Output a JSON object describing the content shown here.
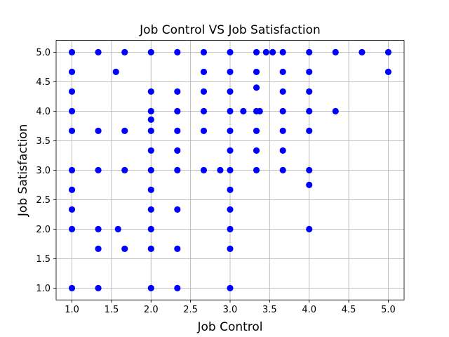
{
  "chart_data": {
    "type": "scatter",
    "title": "Job Control VS Job Satisfaction",
    "xlabel": "Job Control",
    "ylabel": "Job Satisfaction",
    "xlim": [
      0.8,
      5.2
    ],
    "ylim": [
      0.8,
      5.2
    ],
    "xticks": [
      "1.0",
      "1.5",
      "2.0",
      "2.5",
      "3.0",
      "3.5",
      "4.0",
      "4.5",
      "5.0"
    ],
    "yticks": [
      "1.0",
      "1.5",
      "2.0",
      "2.5",
      "3.0",
      "3.5",
      "4.0",
      "4.5",
      "5.0"
    ],
    "grid": true,
    "marker_color": "#0000ff",
    "points": [
      [
        1.0,
        5.0
      ],
      [
        1.0,
        4.667
      ],
      [
        1.0,
        4.333
      ],
      [
        1.0,
        4.0
      ],
      [
        1.0,
        3.667
      ],
      [
        1.0,
        3.0
      ],
      [
        1.0,
        2.667
      ],
      [
        1.0,
        2.333
      ],
      [
        1.0,
        2.0
      ],
      [
        1.0,
        1.0
      ],
      [
        1.333,
        5.0
      ],
      [
        1.333,
        3.667
      ],
      [
        1.333,
        3.0
      ],
      [
        1.333,
        2.0
      ],
      [
        1.333,
        1.667
      ],
      [
        1.333,
        1.0
      ],
      [
        1.556,
        4.667
      ],
      [
        1.583,
        2.0
      ],
      [
        1.667,
        5.0
      ],
      [
        1.667,
        3.667
      ],
      [
        1.667,
        3.0
      ],
      [
        1.667,
        1.667
      ],
      [
        2.0,
        5.0
      ],
      [
        2.0,
        4.333
      ],
      [
        2.0,
        4.0
      ],
      [
        2.0,
        3.857
      ],
      [
        2.0,
        3.667
      ],
      [
        2.0,
        3.333
      ],
      [
        2.0,
        3.0
      ],
      [
        2.0,
        2.667
      ],
      [
        2.0,
        2.333
      ],
      [
        2.0,
        2.0
      ],
      [
        2.0,
        1.667
      ],
      [
        2.0,
        1.0
      ],
      [
        2.333,
        5.0
      ],
      [
        2.333,
        4.333
      ],
      [
        2.333,
        4.0
      ],
      [
        2.333,
        3.667
      ],
      [
        2.333,
        3.333
      ],
      [
        2.333,
        3.0
      ],
      [
        2.333,
        2.333
      ],
      [
        2.333,
        1.667
      ],
      [
        2.333,
        1.0
      ],
      [
        2.667,
        5.0
      ],
      [
        2.667,
        4.667
      ],
      [
        2.667,
        4.333
      ],
      [
        2.667,
        4.0
      ],
      [
        2.667,
        3.667
      ],
      [
        2.667,
        3.0
      ],
      [
        2.875,
        3.0
      ],
      [
        3.0,
        5.0
      ],
      [
        3.0,
        4.667
      ],
      [
        3.0,
        4.333
      ],
      [
        3.0,
        4.0
      ],
      [
        3.0,
        3.667
      ],
      [
        3.0,
        3.333
      ],
      [
        3.0,
        3.0
      ],
      [
        3.0,
        2.667
      ],
      [
        3.0,
        2.333
      ],
      [
        3.0,
        2.0
      ],
      [
        3.0,
        1.667
      ],
      [
        3.0,
        1.0
      ],
      [
        3.167,
        4.0
      ],
      [
        3.333,
        5.0
      ],
      [
        3.333,
        4.667
      ],
      [
        3.333,
        4.4
      ],
      [
        3.333,
        4.0
      ],
      [
        3.333,
        3.667
      ],
      [
        3.333,
        3.333
      ],
      [
        3.333,
        3.0
      ],
      [
        3.375,
        4.0
      ],
      [
        3.455,
        5.0
      ],
      [
        3.538,
        5.0
      ],
      [
        3.667,
        5.0
      ],
      [
        3.667,
        4.667
      ],
      [
        3.667,
        4.333
      ],
      [
        3.667,
        4.0
      ],
      [
        3.667,
        3.667
      ],
      [
        3.667,
        3.333
      ],
      [
        3.667,
        3.0
      ],
      [
        4.0,
        5.0
      ],
      [
        4.0,
        4.667
      ],
      [
        4.0,
        4.333
      ],
      [
        4.0,
        4.0
      ],
      [
        4.0,
        3.667
      ],
      [
        4.0,
        3.0
      ],
      [
        4.0,
        2.75
      ],
      [
        4.0,
        2.0
      ],
      [
        4.333,
        5.0
      ],
      [
        4.333,
        4.0
      ],
      [
        4.667,
        5.0
      ],
      [
        5.0,
        5.0
      ],
      [
        5.0,
        4.667
      ]
    ]
  }
}
